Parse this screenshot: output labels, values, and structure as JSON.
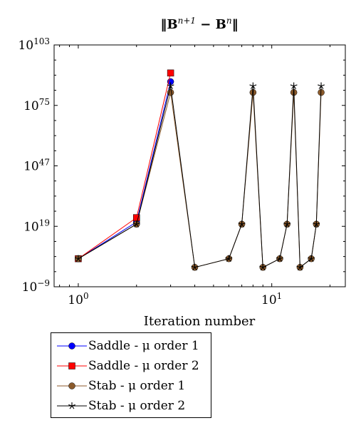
{
  "chart_data": {
    "type": "line",
    "title": "‖B^{n+1} − B^{n}‖",
    "xlabel": "Iteration number",
    "ylabel": "",
    "xscale": "log",
    "yscale": "log",
    "xlim": [
      0.75,
      24
    ],
    "ylim_exponents": [
      -9,
      103
    ],
    "x_tick_labels": [
      {
        "value": 1,
        "base": "10",
        "exp": "0"
      },
      {
        "value": 10,
        "base": "10",
        "exp": "1"
      }
    ],
    "y_tick_labels": [
      {
        "value_exp": -9,
        "base": "10",
        "exp": "−9"
      },
      {
        "value_exp": 19,
        "base": "10",
        "exp": "19"
      },
      {
        "value_exp": 47,
        "base": "10",
        "exp": "47"
      },
      {
        "value_exp": 75,
        "base": "10",
        "exp": "75"
      },
      {
        "value_exp": 103,
        "base": "10",
        "exp": "103"
      }
    ],
    "grid": false,
    "legend_position": "below-left",
    "y_values_note": "",
    "series": [
      {
        "name": "Saddle - μ order 1",
        "color": "#0000ff",
        "marker": "circle",
        "x": [
          1,
          2,
          3
        ],
        "y_exp": [
          4,
          21,
          86
        ]
      },
      {
        "name": "Saddle - μ order 2",
        "color": "#ff0000",
        "marker": "square",
        "x": [
          1,
          2,
          3
        ],
        "y_exp": [
          4,
          23,
          90
        ]
      },
      {
        "name": "Stab - μ order 1",
        "color": "#8b5a2b",
        "marker": "circle",
        "x": [
          1,
          2,
          3,
          4,
          6,
          7,
          8,
          9,
          11,
          12,
          13,
          14,
          16,
          17,
          18
        ],
        "y_exp": [
          4,
          20,
          81,
          0,
          4,
          20,
          81,
          0,
          4,
          20,
          81,
          0,
          4,
          20,
          81
        ]
      },
      {
        "name": "Stab - μ order 2",
        "color": "#000000",
        "marker": "star",
        "x": [
          1,
          2,
          3,
          4,
          6,
          7,
          8,
          9,
          11,
          12,
          13,
          14,
          16,
          17,
          18
        ],
        "y_exp": [
          4,
          20,
          84,
          0,
          4,
          20,
          84,
          0,
          4,
          20,
          84,
          0,
          4,
          20,
          84
        ]
      }
    ]
  }
}
